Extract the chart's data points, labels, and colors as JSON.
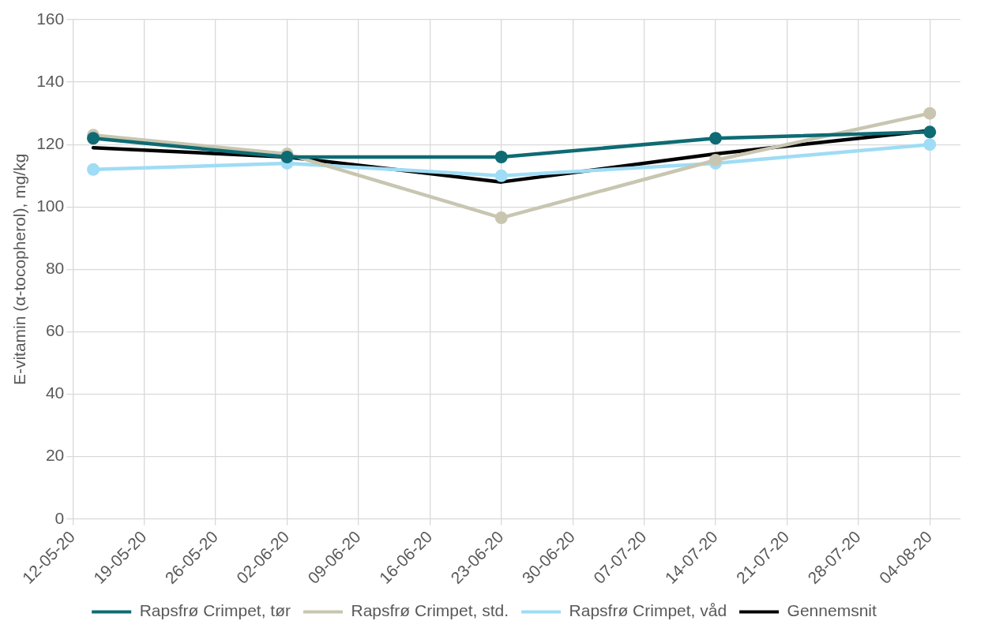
{
  "chart_data": {
    "type": "line",
    "ylabel": "E-vitamin (α-tocopherol), mg/kg",
    "x": [
      "--05-14",
      "--06-02",
      "--06-23",
      "--07-14",
      "--08-04"
    ],
    "series": [
      {
        "name": "Rapsfrø Crimpet, tør",
        "color": "#0e6b73",
        "marker": "circle",
        "values": [
          122,
          116,
          116,
          122,
          124
        ]
      },
      {
        "name": "Rapsfrø Crimpet, std.",
        "color": "#c8c6b0",
        "marker": "circle",
        "values": [
          123,
          117,
          96.5,
          115,
          130
        ]
      },
      {
        "name": "Rapsfrø Crimpet, våd",
        "color": "#9fdcf5",
        "marker": "circle",
        "values": [
          112,
          114,
          110,
          114,
          120
        ]
      },
      {
        "name": "Gennemsnit",
        "color": "#000000",
        "marker": "none",
        "values": [
          119,
          116,
          108,
          117,
          124.5
        ]
      }
    ],
    "xlim": [
      "--05-12",
      "--08-07"
    ],
    "xticks": [
      {
        "value": "--05-12",
        "label": "12-05-20"
      },
      {
        "value": "--05-19",
        "label": "19-05-20"
      },
      {
        "value": "--05-26",
        "label": "26-05-20"
      },
      {
        "value": "--06-02",
        "label": "02-06-20"
      },
      {
        "value": "--06-09",
        "label": "09-06-20"
      },
      {
        "value": "--06-16",
        "label": "16-06-20"
      },
      {
        "value": "--06-23",
        "label": "23-06-20"
      },
      {
        "value": "--06-30",
        "label": "30-06-20"
      },
      {
        "value": "--07-07",
        "label": "07-07-20"
      },
      {
        "value": "--07-14",
        "label": "14-07-20"
      },
      {
        "value": "--07-21",
        "label": "21-07-20"
      },
      {
        "value": "--07-28",
        "label": "28-07-20"
      },
      {
        "value": "--08-04",
        "label": "04-08-20"
      }
    ],
    "ylim": [
      0,
      160
    ],
    "yticks": [
      0,
      20,
      40,
      60,
      80,
      100,
      120,
      140,
      160
    ],
    "grid": true,
    "legend": "bottom",
    "line_style": "solid"
  }
}
